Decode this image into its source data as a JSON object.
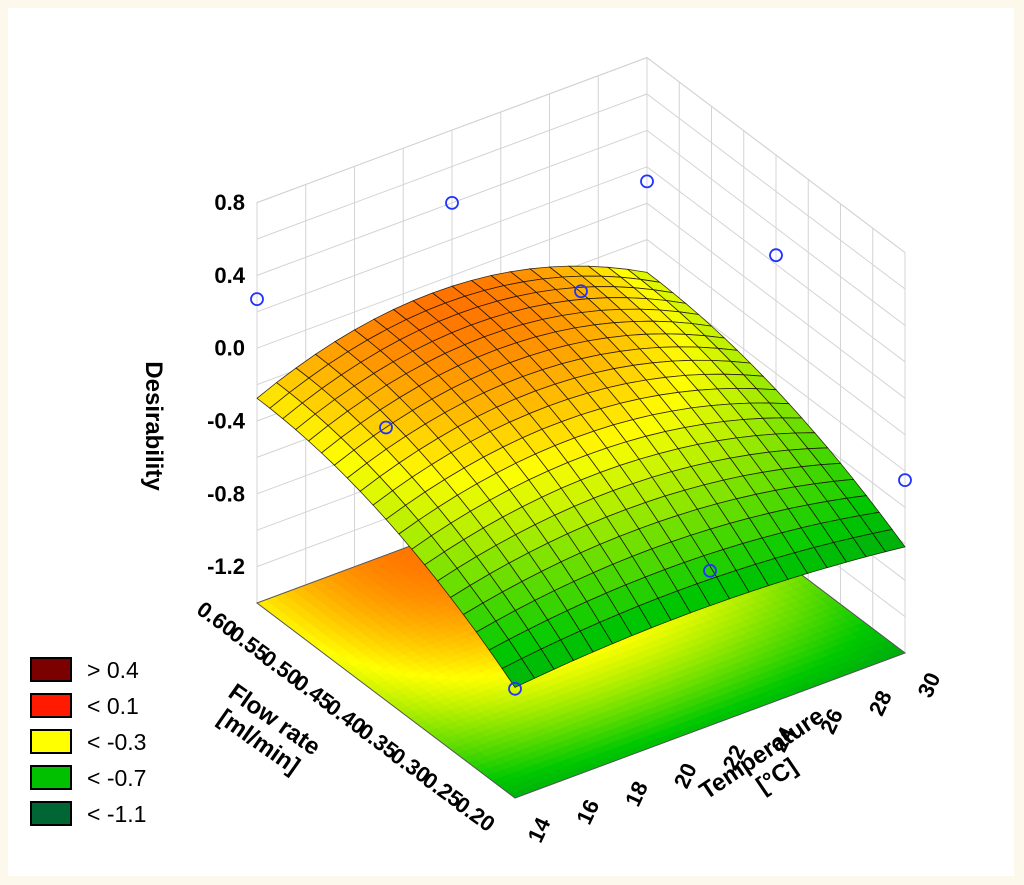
{
  "chart_data": {
    "type": "surface3d",
    "title": "",
    "xlabel": "Temperature\n[°C]",
    "ylabel": "Flow rate\n[ml/min]",
    "zlabel": "Desirability",
    "x_ticks": [
      "14",
      "16",
      "18",
      "20",
      "22",
      "24",
      "26",
      "28",
      "30"
    ],
    "y_ticks": [
      "0.20",
      "0.25",
      "0.30",
      "0.35",
      "0.40",
      "0.45",
      "0.50",
      "0.55",
      "0.60"
    ],
    "z_ticks": [
      "-1.2",
      "-0.8",
      "-0.4",
      "0.0",
      "0.4",
      "0.8"
    ],
    "xlim": [
      14,
      30
    ],
    "ylim": [
      0.2,
      0.6
    ],
    "zlim": [
      -1.4,
      0.8
    ],
    "legend": [
      {
        "label": "> 0.4",
        "color": "#7b0000"
      },
      {
        "label": "< 0.1",
        "color": "#ff1a00"
      },
      {
        "label": "< -0.3",
        "color": "#ffff00"
      },
      {
        "label": "< -0.7",
        "color": "#00c000"
      },
      {
        "label": "< -1.1",
        "color": "#006633"
      }
    ],
    "legend_position": "bottom-left",
    "grid": true,
    "design_points": [
      {
        "x": 14,
        "y": 0.6,
        "z": 0.27
      },
      {
        "x": 14,
        "y": 0.4,
        "z": 0.1
      },
      {
        "x": 14,
        "y": 0.2,
        "z": -0.8
      },
      {
        "x": 22,
        "y": 0.6,
        "z": 0.4
      },
      {
        "x": 22,
        "y": 0.4,
        "z": 0.45
      },
      {
        "x": 22,
        "y": 0.2,
        "z": -0.55
      },
      {
        "x": 30,
        "y": 0.6,
        "z": 0.12
      },
      {
        "x": 30,
        "y": 0.4,
        "z": 0.25
      },
      {
        "x": 30,
        "y": 0.2,
        "z": -0.45
      }
    ]
  }
}
